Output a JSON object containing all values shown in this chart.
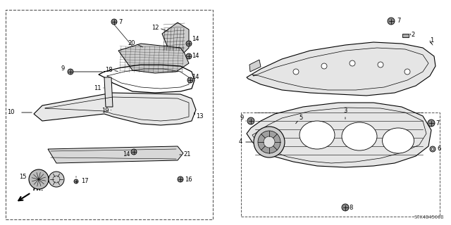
{
  "bg_color": "#ffffff",
  "diagram_code": "STX4B4500B",
  "fig_width": 6.4,
  "fig_height": 3.2,
  "dpi": 100,
  "label_fontsize": 6.0,
  "line_color": "#111111"
}
